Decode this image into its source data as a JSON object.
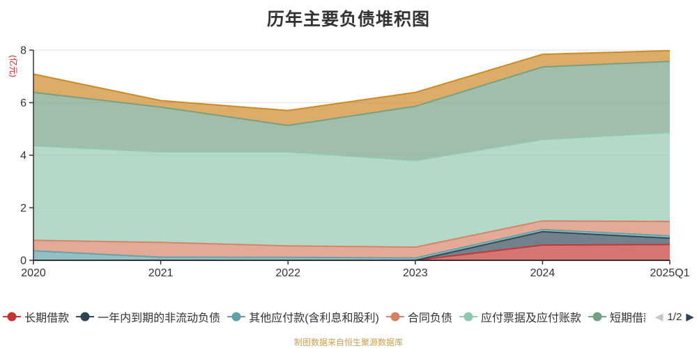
{
  "title": "历年主要负债堆积图",
  "caption": "制图数据来自恒生聚源数据库",
  "caption_color": "#c6a058",
  "y_axis": {
    "name": "(亿元)",
    "name_color": "#e01f1f",
    "ticks": [
      0,
      2,
      4,
      6,
      8
    ],
    "max": 8
  },
  "x_axis": {
    "categories": [
      "2020",
      "2021",
      "2022",
      "2023",
      "2024",
      "2025Q1"
    ]
  },
  "legend": {
    "page": "1/2",
    "prev_icon": "◀",
    "next_icon": "▶",
    "prev_icon_color": "#c5c5c5",
    "next_icon_color": "#2f4554",
    "items": [
      {
        "label": "长期借款",
        "color": "#c23531",
        "truncated": false
      },
      {
        "label": "一年内到期的非流动负债",
        "color": "#2f4554",
        "truncated": false
      },
      {
        "label": "其他应付款(含利息和股利)",
        "color": "#61a0a8",
        "truncated": false
      },
      {
        "label": "合同负债",
        "color": "#d48265",
        "truncated": false
      },
      {
        "label": "应付票据及应付账款",
        "color": "#91c7ae",
        "truncated": false
      },
      {
        "label": "短期借款",
        "color": "#749f83",
        "truncated": true
      }
    ]
  },
  "chart_data": {
    "type": "area",
    "stacked": true,
    "title": "历年主要负债堆积图",
    "ylabel": "(亿元)",
    "ylim": [
      0,
      8
    ],
    "grid": true,
    "legend_position": "bottom",
    "area_opacity": 0.68,
    "categories": [
      "2020",
      "2021",
      "2022",
      "2023",
      "2024",
      "2025Q1"
    ],
    "series": [
      {
        "name": "长期借款",
        "color": "#c23531",
        "values": [
          0,
          0,
          0,
          0,
          0.58,
          0.6
        ]
      },
      {
        "name": "一年内到期的非流动负债",
        "color": "#2f4554",
        "values": [
          0,
          0,
          0,
          0,
          0.51,
          0.24
        ]
      },
      {
        "name": "其他应付款(含利息和股利)",
        "color": "#61a0a8",
        "values": [
          0.36,
          0.12,
          0.11,
          0.09,
          0.08,
          0.09
        ]
      },
      {
        "name": "合同负债",
        "color": "#d48265",
        "values": [
          0.4,
          0.56,
          0.44,
          0.41,
          0.33,
          0.55
        ]
      },
      {
        "name": "应付票据及应付账款",
        "color": "#91c7ae",
        "values": [
          3.6,
          3.45,
          3.58,
          3.3,
          3.1,
          3.39
        ]
      },
      {
        "name": "短期借款",
        "color": "#749f83",
        "values": [
          2.03,
          1.7,
          1.0,
          2.06,
          2.76,
          2.7
        ]
      },
      {
        "name": "",
        "color": "#ca8622",
        "values": [
          0.7,
          0.25,
          0.57,
          0.53,
          0.48,
          0.41
        ],
        "legend_visible": false
      }
    ]
  }
}
